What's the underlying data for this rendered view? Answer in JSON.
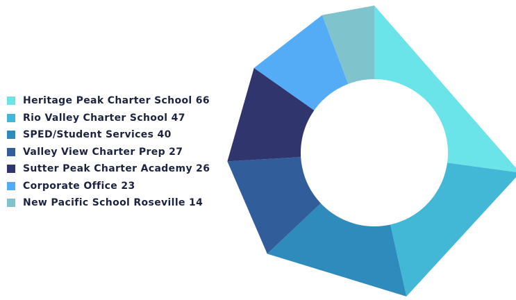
{
  "chart_data": {
    "type": "pie",
    "donut": true,
    "title": "",
    "legend_position": "left",
    "series": [
      {
        "label": "Heritage Peak Charter School 66",
        "name": "Heritage Peak Charter School",
        "value": 66,
        "color": "#6ae4e9"
      },
      {
        "label": "Rio Valley Charter School 47",
        "name": "Rio Valley Charter School",
        "value": 47,
        "color": "#42b8d6"
      },
      {
        "label": "SPED/Student Services 40",
        "name": "SPED/Student Services",
        "value": 40,
        "color": "#2e8bbc"
      },
      {
        "label": "Valley View Charter Prep 27",
        "name": "Valley View Charter Prep",
        "value": 27,
        "color": "#315e9b"
      },
      {
        "label": "Sutter Peak Charter Academy 26",
        "name": "Sutter Peak Charter Academy",
        "value": 26,
        "color": "#31356e"
      },
      {
        "label": "Corporate Office 23",
        "name": "Corporate Office",
        "value": 23,
        "color": "#55acf6"
      },
      {
        "label": "New Pacific School Roseville 14",
        "name": "New Pacific School Roseville",
        "value": 14,
        "color": "#7fc4cd"
      }
    ]
  }
}
